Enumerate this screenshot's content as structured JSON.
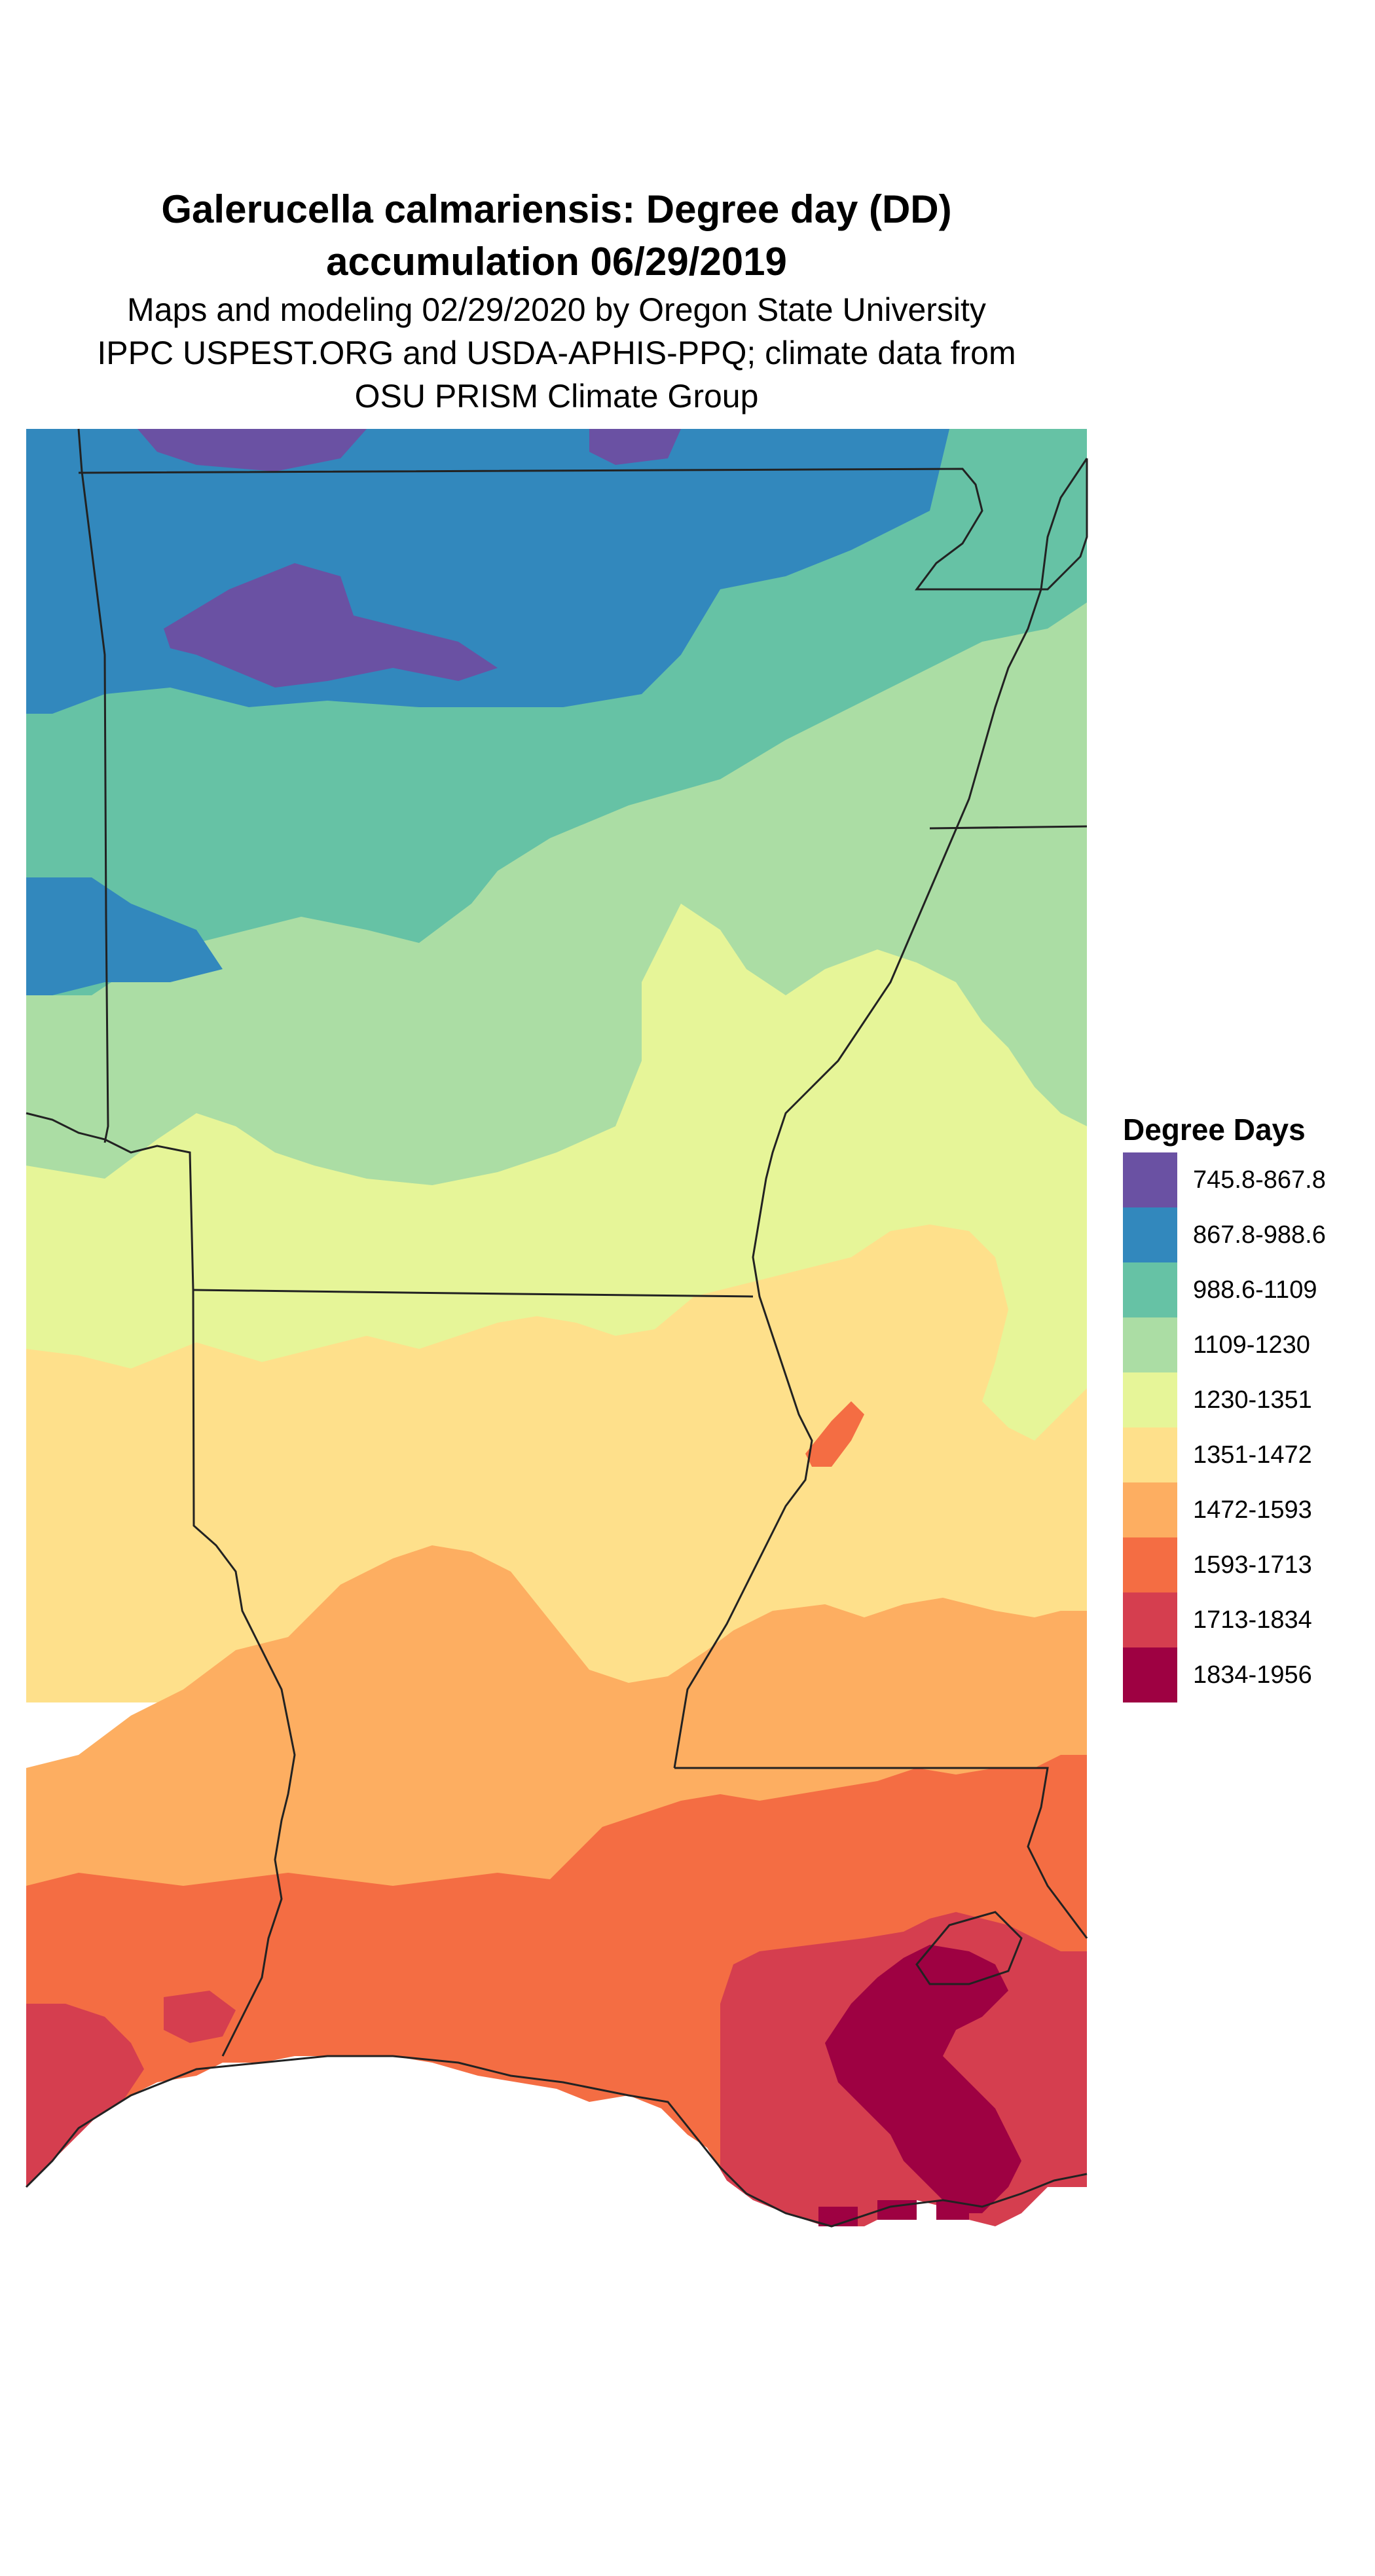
{
  "title": {
    "line1": "Galerucella calmariensis: Degree day (DD)",
    "line2": "accumulation 06/29/2019"
  },
  "subtitle": {
    "line1": "Maps and modeling 02/29/2020 by Oregon State University",
    "line2": "IPPC USPEST.ORG and USDA-APHIS-PPQ; climate data from",
    "line3": "OSU PRISM Climate Group"
  },
  "legend": {
    "title": "Degree Days",
    "items": [
      {
        "label": "745.8-867.8",
        "color": "#6a51a3"
      },
      {
        "label": "867.8-988.6",
        "color": "#3288bd"
      },
      {
        "label": "988.6-1109",
        "color": "#66c2a5"
      },
      {
        "label": "1109-1230",
        "color": "#abdda4"
      },
      {
        "label": "1230-1351",
        "color": "#e6f598"
      },
      {
        "label": "1351-1472",
        "color": "#fee08b"
      },
      {
        "label": "1472-1593",
        "color": "#fdae61"
      },
      {
        "label": "1593-1713",
        "color": "#f46d43"
      },
      {
        "label": "1713-1834",
        "color": "#d53e4f"
      },
      {
        "label": "1834-1956",
        "color": "#9e0142"
      }
    ]
  }
}
